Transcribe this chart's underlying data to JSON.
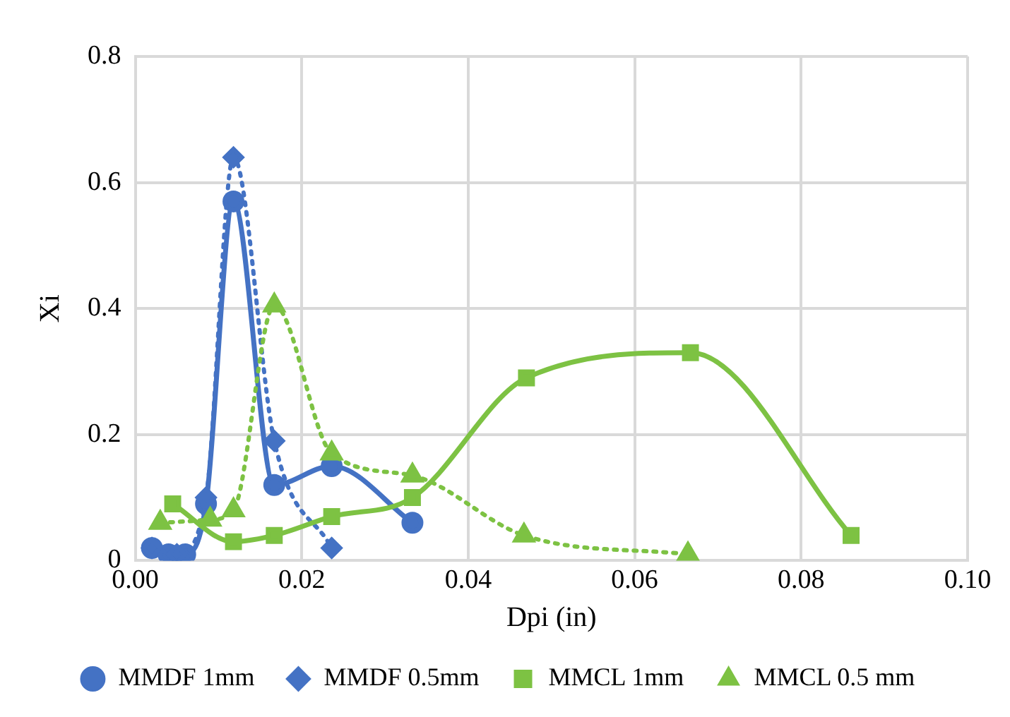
{
  "chart_data": {
    "type": "line",
    "xlabel": "Dpi (in)",
    "ylabel": "Xi",
    "xlim": [
      0,
      0.1
    ],
    "xticks": [
      {
        "value": 0,
        "label": "0.00"
      },
      {
        "value": 0.02,
        "label": "0.02"
      },
      {
        "value": 0.04,
        "label": "0.04"
      },
      {
        "value": 0.06,
        "label": "0.06"
      },
      {
        "value": 0.08,
        "label": "0.08"
      },
      {
        "value": 0.1,
        "label": "0.10"
      }
    ],
    "ylim": [
      0,
      0.8
    ],
    "yticks": [
      0,
      0.2,
      0.4,
      0.6,
      0.8
    ],
    "grid": true,
    "legend": "bottom",
    "series": [
      {
        "name": "MMDF 1mm",
        "color": "#4472c4",
        "marker": "circle",
        "line_style": "solid",
        "x": [
          0.002,
          0.004,
          0.006,
          0.0085,
          0.0118,
          0.0167,
          0.0236,
          0.0333
        ],
        "values": [
          0.02,
          0.01,
          0.01,
          0.09,
          0.57,
          0.12,
          0.15,
          0.06
        ]
      },
      {
        "name": "MMDF 0.5mm",
        "color": "#4472c4",
        "marker": "diamond",
        "line_style": "dotted",
        "x": [
          0.002,
          0.005,
          0.0085,
          0.0118,
          0.0167,
          0.0236
        ],
        "values": [
          0.02,
          0.01,
          0.1,
          0.64,
          0.19,
          0.02
        ]
      },
      {
        "name": "MMCL 1mm",
        "color": "#7dc243",
        "marker": "square",
        "line_style": "solid",
        "x": [
          0.0045,
          0.0118,
          0.0167,
          0.0236,
          0.0333,
          0.047,
          0.0667,
          0.086
        ],
        "values": [
          0.09,
          0.03,
          0.04,
          0.07,
          0.1,
          0.29,
          0.33,
          0.04
        ]
      },
      {
        "name": "MMCL 0.5 mm",
        "color": "#7dc243",
        "marker": "triangle",
        "line_style": "dotted",
        "x": [
          0.003,
          0.009,
          0.0118,
          0.0167,
          0.0236,
          0.0333,
          0.0467,
          0.0664
        ],
        "values": [
          0.06,
          0.065,
          0.08,
          0.405,
          0.17,
          0.135,
          0.04,
          0.01
        ]
      }
    ]
  }
}
